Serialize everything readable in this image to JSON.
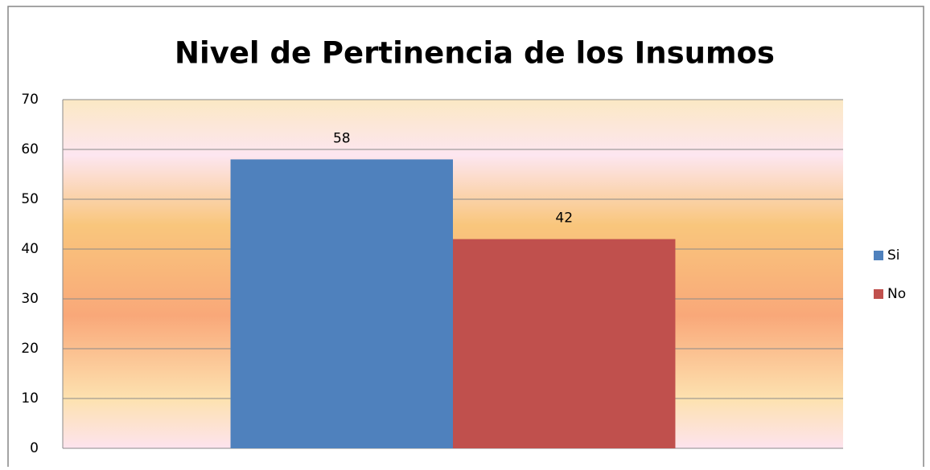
{
  "chart_data": {
    "type": "bar",
    "title": "Nivel de Pertinencia de los Insumos",
    "categories": [
      null
    ],
    "series": [
      {
        "name": "Si",
        "color": "#4f81bd",
        "values": [
          58
        ]
      },
      {
        "name": "No",
        "color": "#c0504d",
        "values": [
          42
        ]
      }
    ],
    "ylim": [
      0,
      70
    ],
    "yticks": [
      0,
      10,
      20,
      30,
      40,
      50,
      60,
      70
    ],
    "grid": true,
    "legend": "right"
  }
}
